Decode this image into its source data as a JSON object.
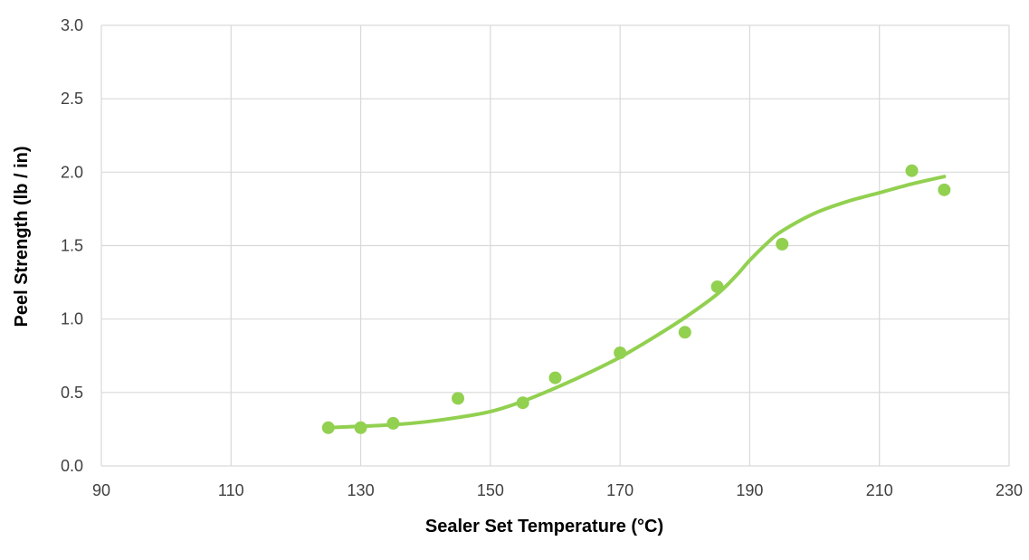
{
  "chart_data": {
    "type": "scatter",
    "title": "",
    "xlabel": "Sealer Set Temperature (°C)",
    "ylabel": "Peel Strength (lb / in)",
    "xlim": [
      90,
      230
    ],
    "ylim": [
      0,
      3.0
    ],
    "xticks": [
      90,
      110,
      130,
      150,
      170,
      190,
      210,
      230
    ],
    "yticks": [
      0,
      0.5,
      1.0,
      1.5,
      2.0,
      2.5,
      3.0
    ],
    "xtick_labels": [
      "90",
      "110",
      "130",
      "150",
      "170",
      "190",
      "210",
      "230"
    ],
    "ytick_labels": [
      "0.0",
      "0.5",
      "1.0",
      "1.5",
      "2.0",
      "2.5",
      "3.0"
    ],
    "grid": true,
    "legend": "none",
    "series": [
      {
        "kind": "points",
        "color": "#92d050",
        "x": [
          125,
          130,
          135,
          145,
          155,
          160,
          170,
          180,
          185,
          195,
          215,
          220
        ],
        "y": [
          0.26,
          0.26,
          0.29,
          0.46,
          0.43,
          0.6,
          0.77,
          0.91,
          1.22,
          1.51,
          2.01,
          1.88
        ]
      },
      {
        "kind": "trendline",
        "color": "#92d050",
        "x": [
          125,
          130,
          135,
          140,
          145,
          150,
          155,
          160,
          165,
          170,
          175,
          180,
          185,
          188,
          190,
          193,
          195,
          200,
          205,
          210,
          215,
          220
        ],
        "y": [
          0.26,
          0.27,
          0.28,
          0.3,
          0.33,
          0.37,
          0.44,
          0.53,
          0.63,
          0.74,
          0.87,
          1.01,
          1.17,
          1.3,
          1.4,
          1.53,
          1.6,
          1.72,
          1.8,
          1.86,
          1.92,
          1.97
        ]
      }
    ]
  }
}
